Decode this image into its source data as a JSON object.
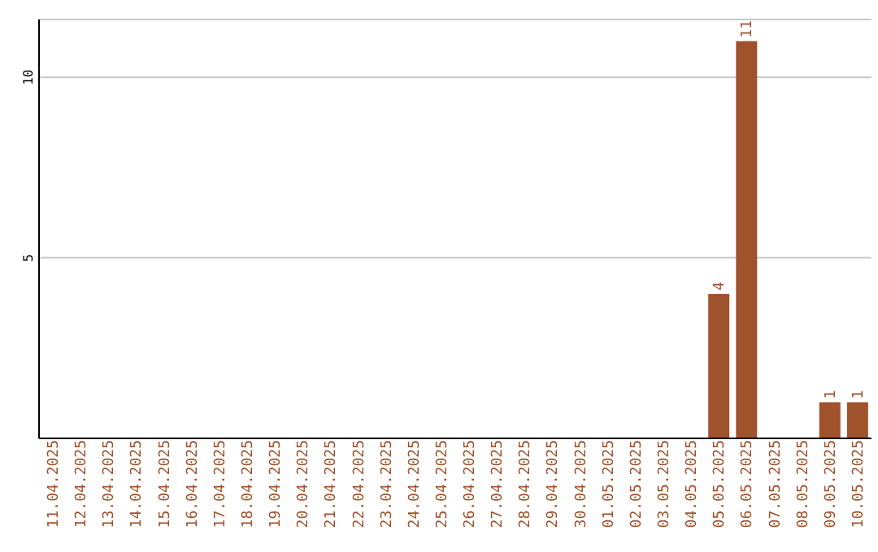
{
  "chart_data": {
    "type": "bar",
    "categories": [
      "11.04.2025",
      "12.04.2025",
      "13.04.2025",
      "14.04.2025",
      "15.04.2025",
      "16.04.2025",
      "17.04.2025",
      "18.04.2025",
      "19.04.2025",
      "20.04.2025",
      "21.04.2025",
      "22.04.2025",
      "23.04.2025",
      "24.04.2025",
      "25.04.2025",
      "26.04.2025",
      "27.04.2025",
      "28.04.2025",
      "29.04.2025",
      "30.04.2025",
      "01.05.2025",
      "02.05.2025",
      "03.05.2025",
      "04.05.2025",
      "05.05.2025",
      "06.05.2025",
      "07.05.2025",
      "08.05.2025",
      "09.05.2025",
      "10.05.2025"
    ],
    "values": [
      0,
      0,
      0,
      0,
      0,
      0,
      0,
      0,
      0,
      0,
      0,
      0,
      0,
      0,
      0,
      0,
      0,
      0,
      0,
      0,
      0,
      0,
      0,
      0,
      4,
      11,
      0,
      0,
      1,
      1
    ],
    "value_labels": [
      null,
      null,
      null,
      null,
      null,
      null,
      null,
      null,
      null,
      null,
      null,
      null,
      null,
      null,
      null,
      null,
      null,
      null,
      null,
      null,
      null,
      null,
      null,
      null,
      "4",
      "11",
      null,
      null,
      "1",
      "1"
    ],
    "color": "#a0522d",
    "ylim": [
      0,
      11.6
    ],
    "yticks": [
      5,
      10
    ],
    "grid": "y",
    "legend": false
  }
}
